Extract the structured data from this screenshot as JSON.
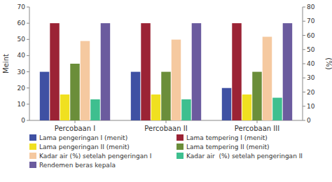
{
  "chart_data": {
    "type": "bar",
    "categories": [
      "Percobaan I",
      "Percobaan II",
      "Percobaan III"
    ],
    "series": [
      {
        "name": "Lama pengeringan I (menit)",
        "color": "#3F51A3",
        "values": [
          30,
          30,
          20
        ]
      },
      {
        "name": "Lama tempering I (menit)",
        "color": "#9B2335",
        "values": [
          60,
          60,
          60
        ]
      },
      {
        "name": "Lama pengeringan II (menit)",
        "color": "#F0E020",
        "values": [
          16,
          16,
          16
        ]
      },
      {
        "name": "Lama tempering II (menit)",
        "color": "#6B8E3A",
        "values": [
          35,
          30,
          30
        ]
      },
      {
        "name": "Kadar air (%) setelah pengeringan I",
        "color": "#F5C9A0",
        "values": [
          56,
          57,
          59
        ],
        "axis": "y2"
      },
      {
        "name": "Kadar air  (%) setelah pengeringan II",
        "color": "#3EBF8F",
        "values": [
          13,
          13,
          14
        ]
      },
      {
        "name": "Rendemen beras kepala",
        "color": "#6B5B9E",
        "values": [
          60,
          60,
          60
        ]
      }
    ],
    "ylim": [
      0,
      70
    ],
    "yticks": [
      0,
      10,
      20,
      30,
      40,
      50,
      60,
      70
    ],
    "y2lim": [
      0,
      80
    ],
    "y2ticks": [
      0,
      10,
      20,
      30,
      40,
      50,
      60,
      70,
      80
    ],
    "ylabel": "Meint",
    "y2label": "(%)",
    "grid": false,
    "legend": "bottom"
  }
}
